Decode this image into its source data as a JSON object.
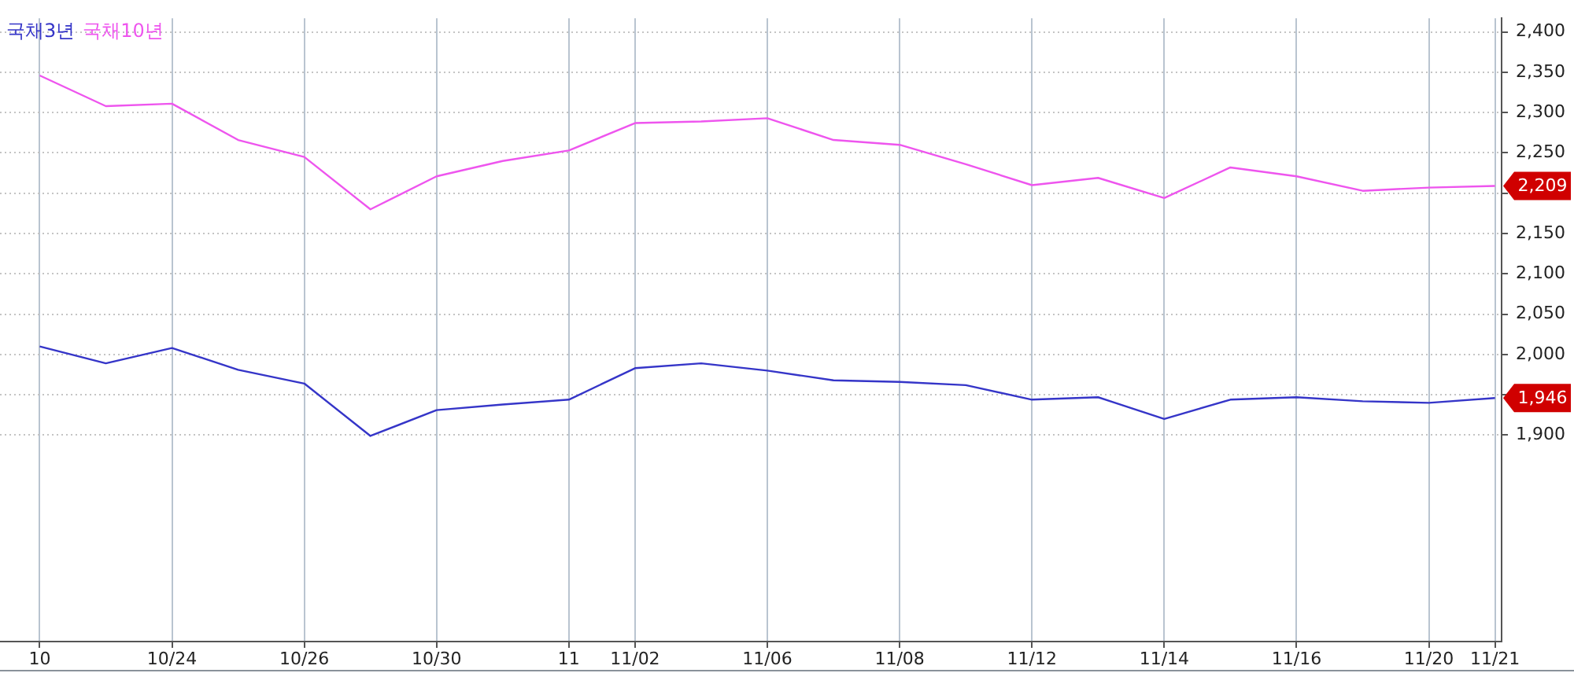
{
  "chart_data": {
    "type": "line",
    "categories": [
      "10",
      null,
      "10/24",
      null,
      "10/26",
      null,
      "10/30",
      null,
      "11",
      "11/02",
      null,
      "11/06",
      null,
      "11/08",
      null,
      "11/12",
      null,
      "11/14",
      null,
      "11/16",
      null,
      "11/20",
      "11/21"
    ],
    "series": [
      {
        "name": "국채3년",
        "color": "#3535c8",
        "values": [
          2010,
          1989,
          2008,
          1981,
          1964,
          1899,
          1931,
          1938,
          1944,
          1983,
          1989,
          1980,
          1968,
          1966,
          1962,
          1944,
          1947,
          1920,
          1944,
          1947,
          1942,
          1940,
          1946
        ],
        "value_labels": [
          null,
          null,
          null,
          null,
          null,
          null,
          null,
          null,
          null,
          null,
          null,
          null,
          null,
          null,
          null,
          null,
          null,
          null,
          null,
          null,
          null,
          null,
          "1,946"
        ]
      },
      {
        "name": "국채10년",
        "color": "#ee55ee",
        "values": [
          2346,
          2308,
          2311,
          2266,
          2245,
          2180,
          2221,
          2240,
          2253,
          2287,
          2289,
          2293,
          2266,
          2260,
          2236,
          2210,
          2219,
          2194,
          2232,
          2221,
          2203,
          2207,
          2209
        ],
        "value_labels": [
          null,
          null,
          null,
          null,
          null,
          null,
          null,
          null,
          null,
          null,
          null,
          null,
          null,
          null,
          null,
          null,
          null,
          null,
          null,
          null,
          null,
          null,
          "2,209"
        ]
      }
    ],
    "ylim": [
      1644,
      2417
    ],
    "yticks": [
      {
        "value": 1900,
        "label": "1,900"
      },
      {
        "value": 1950,
        "label": null
      },
      {
        "value": 2000,
        "label": "2,000"
      },
      {
        "value": 2050,
        "label": "2,050"
      },
      {
        "value": 2100,
        "label": "2,100"
      },
      {
        "value": 2150,
        "label": "2,150"
      },
      {
        "value": 2200,
        "label": null
      },
      {
        "value": 2250,
        "label": "2,250"
      },
      {
        "value": 2300,
        "label": "2,300"
      },
      {
        "value": 2350,
        "label": "2,350"
      },
      {
        "value": 2400,
        "label": "2,400"
      }
    ],
    "grid": true,
    "legend": "top left"
  }
}
